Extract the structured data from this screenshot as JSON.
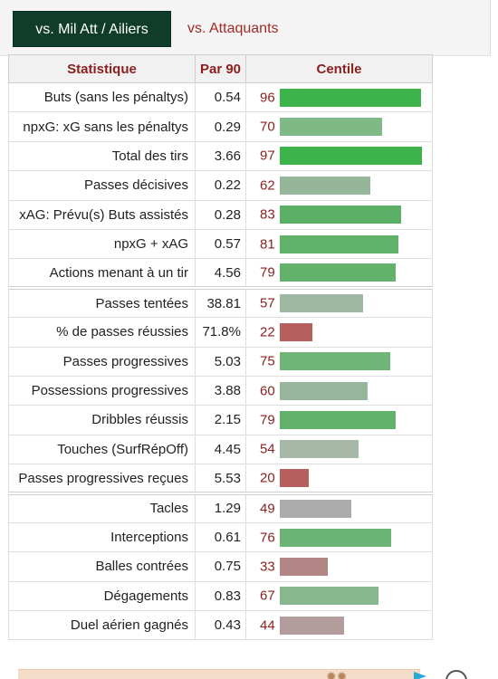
{
  "tabs": {
    "active_label": "vs. Mil Att / Ailiers",
    "inactive_label": "vs. Attaquants"
  },
  "table": {
    "headers": {
      "stat": "Statistique",
      "per90": "Par 90",
      "percentile": "Centile"
    },
    "rows": [
      {
        "stat": "Buts (sans les pénaltys)",
        "per90": "0.54",
        "percentile": 96,
        "color": "#3cb44b"
      },
      {
        "stat": "npxG: xG sans les pénaltys",
        "per90": "0.29",
        "percentile": 70,
        "color": "#7fb986"
      },
      {
        "stat": "Total des tirs",
        "per90": "3.66",
        "percentile": 97,
        "color": "#3cb44b"
      },
      {
        "stat": "Passes décisives",
        "per90": "0.22",
        "percentile": 62,
        "color": "#95b698"
      },
      {
        "stat": "xAG: Prévu(s) Buts assistés",
        "per90": "0.28",
        "percentile": 83,
        "color": "#5cb065"
      },
      {
        "stat": "npxG + xAG",
        "per90": "0.57",
        "percentile": 81,
        "color": "#5fb268"
      },
      {
        "stat": "Actions menant à un tir",
        "per90": "4.56",
        "percentile": 79,
        "color": "#62b26b"
      },
      {
        "stat": "Passes tentées",
        "per90": "38.81",
        "percentile": 57,
        "color": "#9fb8a1"
      },
      {
        "stat": "% de passes réussies",
        "per90": "71.8%",
        "percentile": 22,
        "color": "#b55f5f"
      },
      {
        "stat": "Passes progressives",
        "per90": "5.03",
        "percentile": 75,
        "color": "#6fb577"
      },
      {
        "stat": "Possessions progressives",
        "per90": "3.88",
        "percentile": 60,
        "color": "#98b69b"
      },
      {
        "stat": "Dribbles réussis",
        "per90": "2.15",
        "percentile": 79,
        "color": "#62b26b"
      },
      {
        "stat": "Touches (SurfRépOff)",
        "per90": "4.45",
        "percentile": 54,
        "color": "#a6b8a8"
      },
      {
        "stat": "Passes progressives reçues",
        "per90": "5.53",
        "percentile": 20,
        "color": "#b55f5f"
      },
      {
        "stat": "Tacles",
        "per90": "1.29",
        "percentile": 49,
        "color": "#ababab"
      },
      {
        "stat": "Interceptions",
        "per90": "0.61",
        "percentile": 76,
        "color": "#6cb475"
      },
      {
        "stat": "Balles contrées",
        "per90": "0.75",
        "percentile": 33,
        "color": "#b38686"
      },
      {
        "stat": "Dégagements",
        "per90": "0.83",
        "percentile": 67,
        "color": "#88b78d"
      },
      {
        "stat": "Duel aérien gagnés",
        "per90": "0.43",
        "percentile": 44,
        "color": "#b39c9c"
      }
    ]
  }
}
